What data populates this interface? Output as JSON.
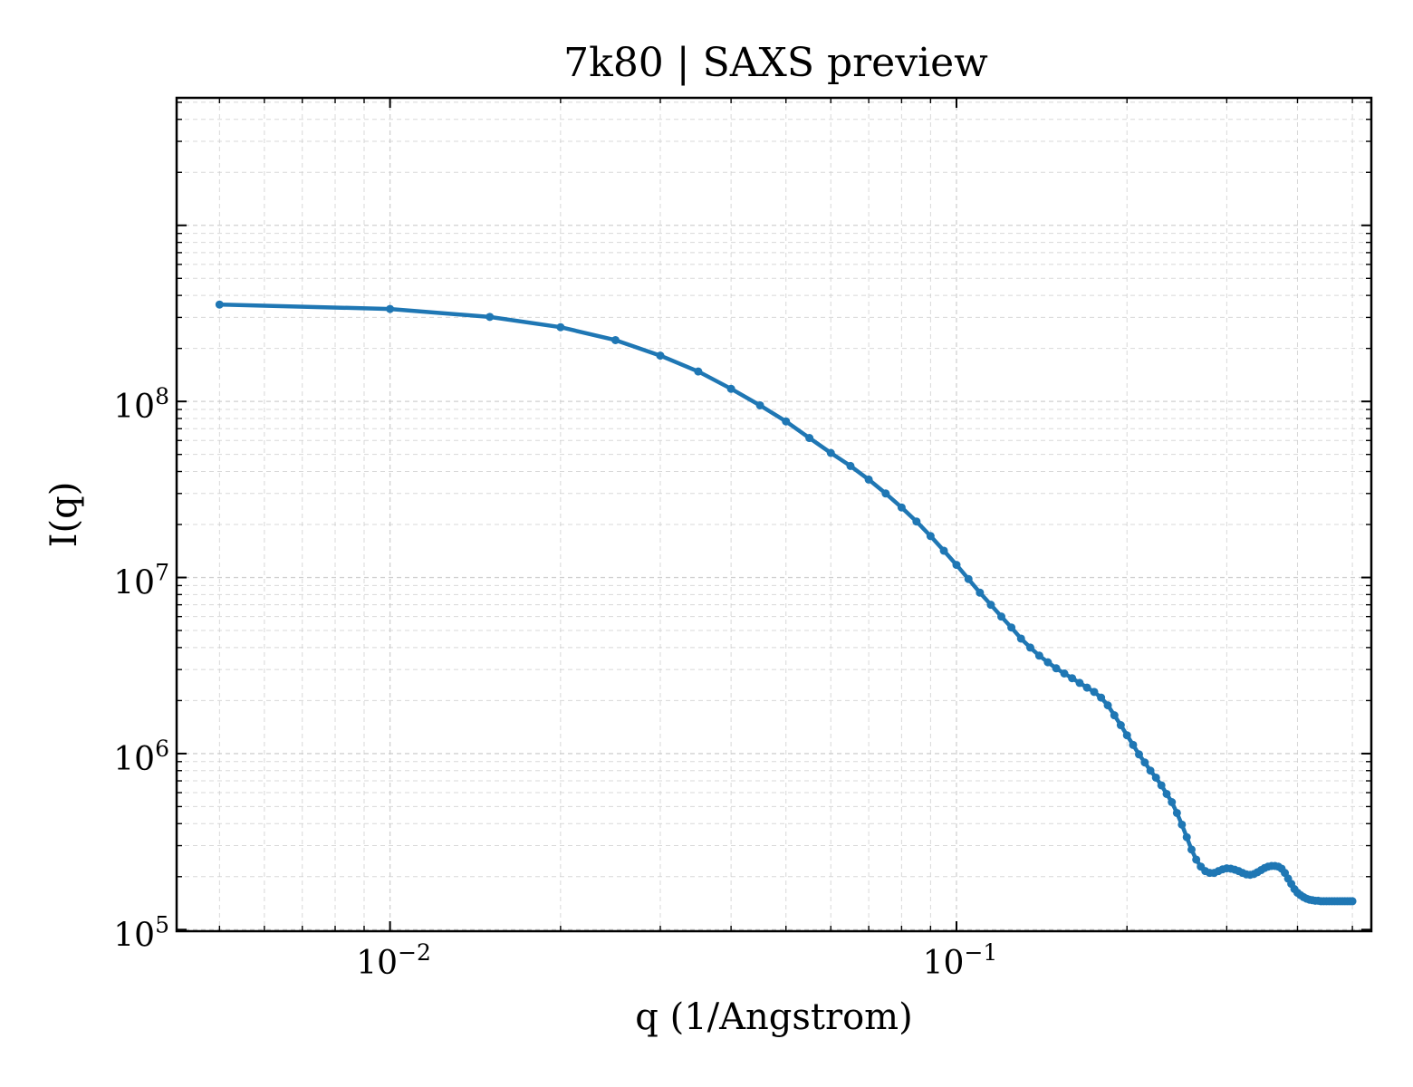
{
  "chart_data": {
    "type": "line",
    "title": "7k80 | SAXS preview",
    "xlabel": "q (1/Angstrom)",
    "ylabel": "I(q)",
    "xscale": "log",
    "yscale": "log",
    "xlim": [
      0.0042,
      0.54
    ],
    "ylim": [
      98000,
      5300000000
    ],
    "grid": true,
    "legend": "none",
    "x_ticks": [
      {
        "value": 0.01,
        "base": "10",
        "exp": "−2"
      },
      {
        "value": 0.1,
        "base": "10",
        "exp": "−1"
      }
    ],
    "y_ticks": [
      {
        "value": 100000,
        "base": "10",
        "exp": "5"
      },
      {
        "value": 1000000,
        "base": "10",
        "exp": "6"
      },
      {
        "value": 10000000,
        "base": "10",
        "exp": "7"
      },
      {
        "value": 100000000,
        "base": "10",
        "exp": "8"
      }
    ],
    "series": [
      {
        "color": "#1f77b4",
        "x": [
          0.005,
          0.01,
          0.015,
          0.02,
          0.025,
          0.03,
          0.035,
          0.04,
          0.045,
          0.05,
          0.055,
          0.06,
          0.065,
          0.07,
          0.075,
          0.08,
          0.085,
          0.09,
          0.095,
          0.1,
          0.105,
          0.11,
          0.115,
          0.12,
          0.125,
          0.13,
          0.135,
          0.14,
          0.145,
          0.15,
          0.155,
          0.16,
          0.165,
          0.17,
          0.175,
          0.18,
          0.185,
          0.19,
          0.195,
          0.2,
          0.205,
          0.21,
          0.215,
          0.22,
          0.225,
          0.23,
          0.235,
          0.24,
          0.245,
          0.25,
          0.255,
          0.26,
          0.265,
          0.27,
          0.275,
          0.28,
          0.285,
          0.29,
          0.295,
          0.3,
          0.305,
          0.31,
          0.315,
          0.32,
          0.325,
          0.33,
          0.335,
          0.34,
          0.345,
          0.35,
          0.355,
          0.36,
          0.365,
          0.37,
          0.375,
          0.38,
          0.385,
          0.39,
          0.395,
          0.4,
          0.405,
          0.41,
          0.415,
          0.42,
          0.425,
          0.43,
          0.435,
          0.44,
          0.445,
          0.45,
          0.455,
          0.46,
          0.465,
          0.47,
          0.475,
          0.48,
          0.485,
          0.49,
          0.495,
          0.5
        ],
        "y": [
          355000000,
          335000000,
          302000000,
          264000000,
          223000000,
          182000000,
          148000000,
          118000000,
          95000000,
          77000000,
          62000000,
          51000000,
          43000000,
          36000000,
          30000000,
          25000000,
          20800000,
          17200000,
          14200000,
          11800000,
          9800000,
          8200000,
          7000000,
          6000000,
          5200000,
          4500000,
          4000000,
          3600000,
          3300000,
          3050000,
          2850000,
          2680000,
          2520000,
          2370000,
          2240000,
          2080000,
          1880000,
          1650000,
          1450000,
          1270000,
          1120000,
          990000,
          890000,
          800000,
          730000,
          660000,
          590000,
          530000,
          460000,
          395000,
          335000,
          285000,
          250000,
          228000,
          215000,
          210000,
          210000,
          215000,
          220000,
          223000,
          222000,
          219000,
          215000,
          210000,
          206000,
          205000,
          207000,
          212000,
          218000,
          224000,
          228000,
          230000,
          230000,
          228000,
          222000,
          210000,
          195000,
          182000,
          170000,
          162000,
          157000,
          153000,
          150000,
          148000,
          147000,
          146000,
          146000,
          145000,
          145000,
          145000,
          145000,
          145000,
          145000,
          145000,
          145000,
          145000,
          145000,
          145000,
          145000,
          145000
        ]
      }
    ]
  }
}
